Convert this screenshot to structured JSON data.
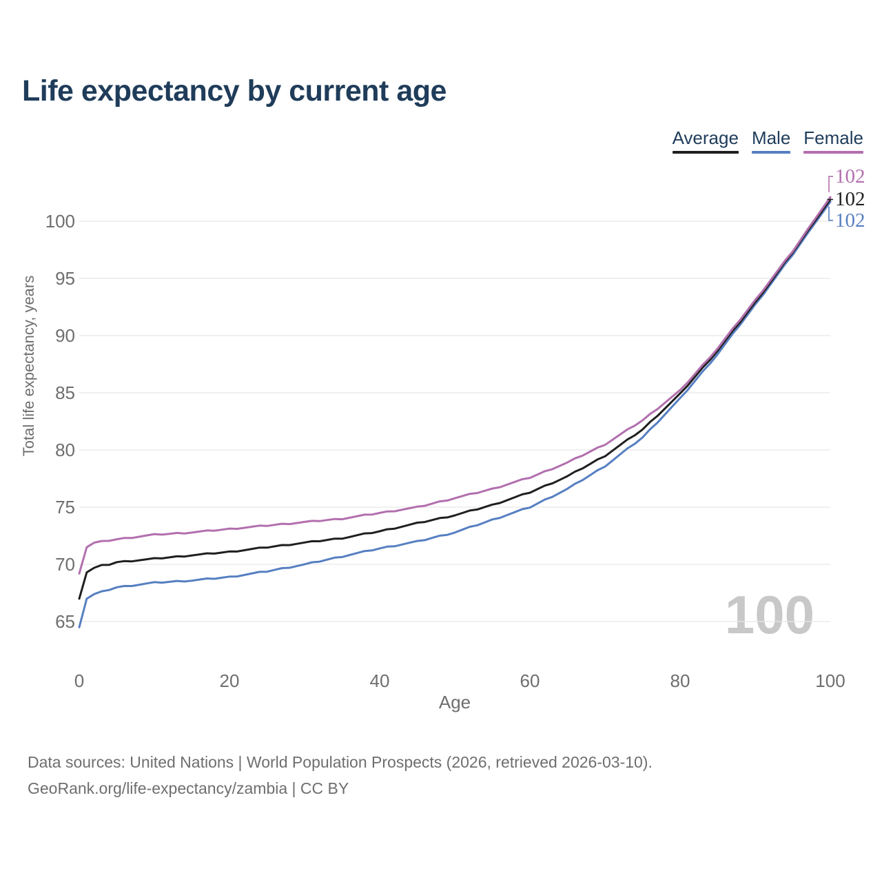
{
  "title": "Life expectancy by current age",
  "watermark": "100",
  "legend": [
    {
      "label": "Average",
      "color": "#1f1f1f"
    },
    {
      "label": "Male",
      "color": "#567fc1"
    },
    {
      "label": "Female",
      "color": "#b26fae"
    }
  ],
  "footer": {
    "line1": "Data sources: United Nations | World Population Prospects (2026, retrieved 2026-03-10).",
    "line2": "GeoRank.org/life-expectancy/zambia | CC BY"
  },
  "chart_data": {
    "type": "line",
    "title": "Life expectancy by current age",
    "xlabel": "Age",
    "ylabel": "Total life expectancy, years",
    "xlim": [
      0,
      100
    ],
    "ylim": [
      64,
      104
    ],
    "xticks": [
      0,
      20,
      40,
      60,
      80,
      100
    ],
    "yticks": [
      65,
      70,
      75,
      80,
      85,
      90,
      95,
      100
    ],
    "grid": "horizontal",
    "legend_position": "top-right",
    "x": [
      0,
      1,
      2,
      3,
      4,
      5,
      10,
      15,
      20,
      25,
      30,
      35,
      40,
      45,
      50,
      55,
      60,
      65,
      70,
      75,
      80,
      85,
      90,
      95,
      100
    ],
    "series": [
      {
        "name": "Average",
        "color": "#1f1f1f",
        "end_label": "102",
        "values": [
          67.0,
          69.3,
          69.7,
          69.9,
          70.0,
          70.2,
          70.5,
          70.8,
          71.1,
          71.5,
          71.9,
          72.3,
          72.9,
          73.6,
          74.3,
          75.2,
          76.3,
          77.7,
          79.5,
          81.8,
          84.9,
          88.7,
          92.9,
          97.3,
          101.9
        ]
      },
      {
        "name": "Male",
        "color": "#567fc1",
        "end_label": "102",
        "values": [
          64.5,
          67.0,
          67.4,
          67.6,
          67.8,
          68.0,
          68.4,
          68.6,
          68.9,
          69.4,
          70.0,
          70.7,
          71.4,
          72.0,
          72.8,
          73.9,
          75.0,
          76.6,
          78.6,
          81.1,
          84.5,
          88.4,
          92.7,
          97.1,
          101.7
        ]
      },
      {
        "name": "Female",
        "color": "#b26fae",
        "end_label": "102",
        "values": [
          69.2,
          71.5,
          71.9,
          72.0,
          72.1,
          72.2,
          72.6,
          72.8,
          73.1,
          73.4,
          73.7,
          74.0,
          74.5,
          75.0,
          75.8,
          76.6,
          77.6,
          78.9,
          80.5,
          82.6,
          85.2,
          88.9,
          93.1,
          97.4,
          102.1
        ]
      }
    ]
  }
}
